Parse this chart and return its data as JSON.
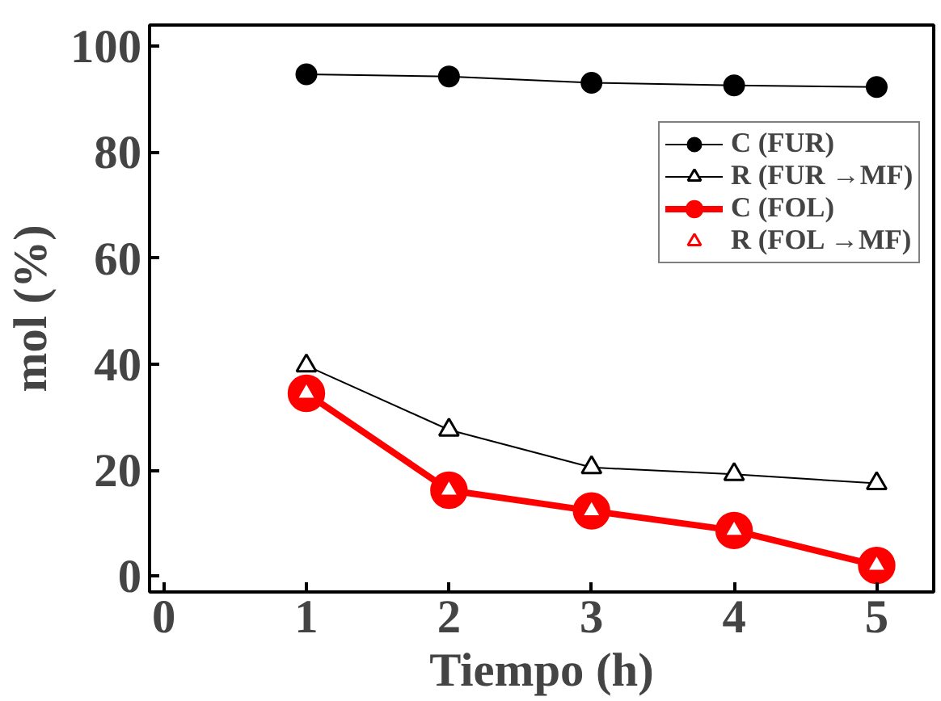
{
  "chart_data": {
    "type": "line",
    "xlabel": "Tiempo (h)",
    "ylabel": "mol (%)",
    "x": [
      1,
      2,
      3,
      4,
      5
    ],
    "xlim": [
      -0.1,
      5.4
    ],
    "ylim": [
      -3,
      104
    ],
    "xticks": [
      0,
      1,
      2,
      3,
      4,
      5
    ],
    "yticks": [
      0,
      20,
      40,
      60,
      80,
      100
    ],
    "grid": false,
    "legend": "top right",
    "line_style": "solid",
    "series": [
      {
        "name": "C (FUR)",
        "color": "#000000",
        "marker": "circle",
        "values": [
          94.7,
          94.3,
          93.1,
          92.6,
          92.3
        ]
      },
      {
        "name": "R (FUR →MF)",
        "color": "#000000",
        "marker": "triangle",
        "values": [
          39.7,
          27.6,
          20.5,
          19.2,
          17.5
        ]
      },
      {
        "name": "C (FOL)",
        "color": "#ff0000",
        "marker": "circle",
        "values": [
          34.5,
          16.2,
          12.3,
          8.6,
          2.0
        ]
      },
      {
        "name": "R (FOL →MF)",
        "color": "#ff0000",
        "marker": "triangle",
        "type": "scatter",
        "values": [
          34.5,
          16.2,
          12.3,
          8.6,
          2.0
        ]
      }
    ]
  }
}
